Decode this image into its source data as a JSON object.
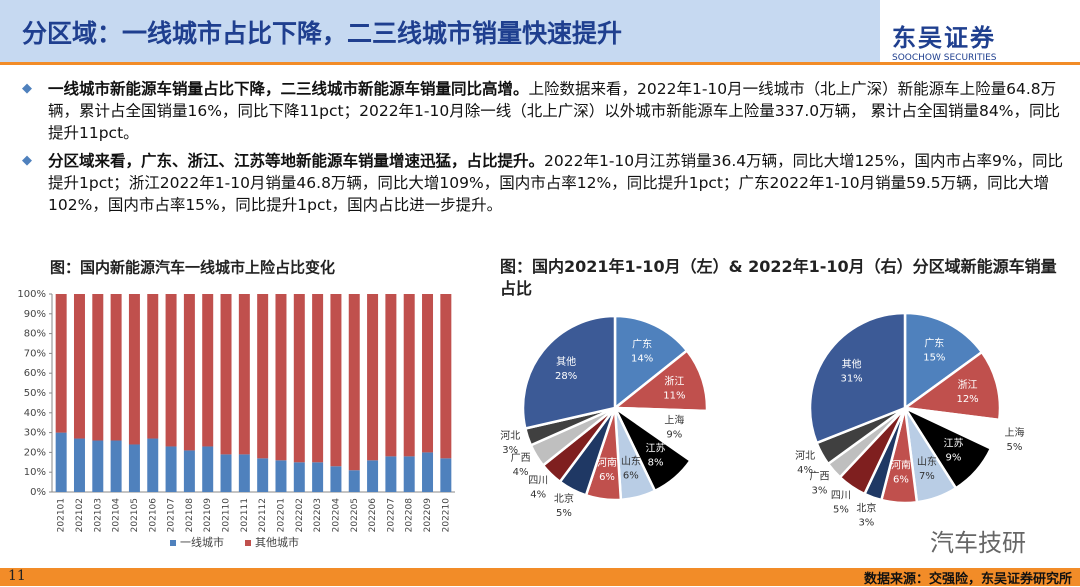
{
  "header": {
    "title": "分区域：一线城市占比下降，二三线城市销量快速提升",
    "logo": "东吴证券",
    "logo_sub": "SOOCHOW SECURITIES"
  },
  "bullets": [
    {
      "lead": "一线城市新能源车销量占比下降，二三线城市新能源车销量同比高增。",
      "text": "上险数据来看，2022年1-10月一线城市（北上广深）新能源车上险量64.8万辆，累计占全国销量16%，同比下降11pct；2022年1-10月除一线（北上广深）以外城市新能源车上险量337.0万辆， 累计占全国销量84%，同比提升11pct。"
    },
    {
      "lead": "分区域来看，广东、浙江、江苏等地新能源车销量增速迅猛，占比提升。",
      "text": "2022年1-10月江苏销量36.4万辆，同比大增125%，国内市占率9%，同比提升1pct；浙江2022年1-10月销量46.8万辆，同比大增109%，国内市占率12%，同比提升1pct；广东2022年1-10月销量59.5万辆，同比大增102%，国内市占率15%，同比提升1pct，国内占比进一步提升。"
    }
  ],
  "chart_data": [
    {
      "type": "stacked_bar",
      "title": "图：国内新能源汽车一线城市上险占比变化",
      "categories": [
        "202101",
        "202102",
        "202103",
        "202104",
        "202105",
        "202106",
        "202107",
        "202108",
        "202109",
        "202110",
        "202111",
        "202112",
        "202201",
        "202202",
        "202203",
        "202204",
        "202205",
        "202206",
        "202207",
        "202208",
        "202209",
        "202210"
      ],
      "series": [
        {
          "name": "一线城市",
          "color": "#4f81bd",
          "values": [
            30,
            27,
            26,
            26,
            24,
            27,
            23,
            21,
            23,
            19,
            19,
            17,
            16,
            15,
            15,
            13,
            11,
            16,
            18,
            18,
            20,
            17
          ]
        },
        {
          "name": "其他城市",
          "color": "#c0504d",
          "values": [
            70,
            73,
            74,
            74,
            76,
            73,
            77,
            79,
            77,
            81,
            81,
            83,
            84,
            85,
            85,
            87,
            89,
            84,
            82,
            82,
            80,
            83
          ]
        }
      ],
      "ylim": [
        0,
        100
      ],
      "yticks": [
        {
          "value": 0,
          "label": "0%"
        },
        {
          "value": 10,
          "label": "10%"
        },
        {
          "value": 20,
          "label": "20%"
        },
        {
          "value": 30,
          "label": "30%"
        },
        {
          "value": 40,
          "label": "40%"
        },
        {
          "value": 50,
          "label": "50%"
        },
        {
          "value": 60,
          "label": "60%"
        },
        {
          "value": 70,
          "label": "70%"
        },
        {
          "value": 80,
          "label": "80%"
        },
        {
          "value": 90,
          "label": "90%"
        },
        {
          "value": 100,
          "label": "100%"
        }
      ],
      "legend": "bottom"
    },
    {
      "type": "pie",
      "title": "图：国内2021年1-10月（左）& 2022年1-10月（右）分区域新能源车销量占比",
      "categories": [
        "广东",
        "浙江",
        "上海",
        "江苏",
        "山东",
        "河南",
        "北京",
        "四川",
        "广西",
        "河北",
        "其他"
      ],
      "values": [
        14,
        11,
        9,
        8,
        6,
        6,
        5,
        4,
        4,
        3,
        28
      ],
      "value_labels": [
        "14%",
        "11%",
        "9%",
        "8%",
        "6%",
        "6%",
        "5%",
        "4%",
        "4%",
        "3%",
        "28%"
      ],
      "colors": [
        "#4f81bd",
        "#c0504d",
        "#ffffff",
        "#000000",
        "#b9cde5",
        "#c0504d",
        "#1f3864",
        "#7f1f1f",
        "#bfbfbf",
        "#404040",
        "#3c5a96"
      ]
    },
    {
      "type": "pie",
      "categories": [
        "广东",
        "浙江",
        "上海",
        "江苏",
        "山东",
        "河南",
        "北京",
        "四川",
        "广西",
        "河北",
        "其他"
      ],
      "values": [
        15,
        12,
        5,
        9,
        7,
        6,
        3,
        5,
        3,
        4,
        31
      ],
      "value_labels": [
        "15%",
        "12%",
        "5%",
        "9%",
        "7%",
        "6%",
        "3%",
        "5%",
        "3%",
        "4%",
        "31%"
      ],
      "colors": [
        "#4f81bd",
        "#c0504d",
        "#ffffff",
        "#000000",
        "#b9cde5",
        "#c0504d",
        "#1f3864",
        "#7f1f1f",
        "#bfbfbf",
        "#404040",
        "#3c5a96"
      ]
    }
  ],
  "footer": {
    "page": "11",
    "source": "数据来源：交强险，东吴证券研究所"
  },
  "watermark": "汽车技研"
}
